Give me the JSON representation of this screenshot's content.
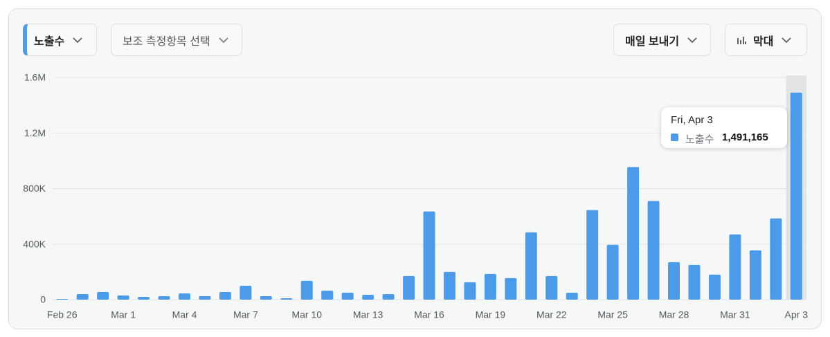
{
  "controls": {
    "metric": "노출수",
    "secondary": "보조 측정항목 선택",
    "export": "매일 보내기",
    "chart_type": "막대"
  },
  "chart_data": {
    "type": "bar",
    "categories": [
      "Feb 26",
      null,
      null,
      "Mar 1",
      null,
      null,
      "Mar 4",
      null,
      null,
      "Mar 7",
      null,
      null,
      "Mar 10",
      null,
      null,
      "Mar 13",
      null,
      null,
      "Mar 16",
      null,
      null,
      "Mar 19",
      null,
      null,
      "Mar 22",
      null,
      null,
      "Mar 25",
      null,
      null,
      "Mar 28",
      null,
      null,
      "Mar 31",
      null,
      null,
      "Apr 3"
    ],
    "series": [
      {
        "name": "노출수",
        "color": "#4b9be8",
        "values": [
          5000,
          40000,
          55000,
          30000,
          20000,
          25000,
          45000,
          25000,
          55000,
          100000,
          25000,
          10000,
          135000,
          65000,
          50000,
          35000,
          40000,
          170000,
          635000,
          200000,
          125000,
          185000,
          155000,
          485000,
          170000,
          50000,
          645000,
          395000,
          955000,
          710000,
          270000,
          250000,
          180000,
          470000,
          355000,
          585000,
          1491165
        ]
      }
    ],
    "ylim": [
      0,
      1600000
    ],
    "yticks": [
      0,
      {
        "value": 400000,
        "label": "400K"
      },
      {
        "value": 800000,
        "label": "800K"
      },
      {
        "value": 1200000,
        "label": "1.2M"
      },
      {
        "value": 1600000,
        "label": "1.6M"
      }
    ],
    "grid": true,
    "tooltip": {
      "title": "Fri, Apr 3",
      "value": "1,491,165"
    }
  }
}
